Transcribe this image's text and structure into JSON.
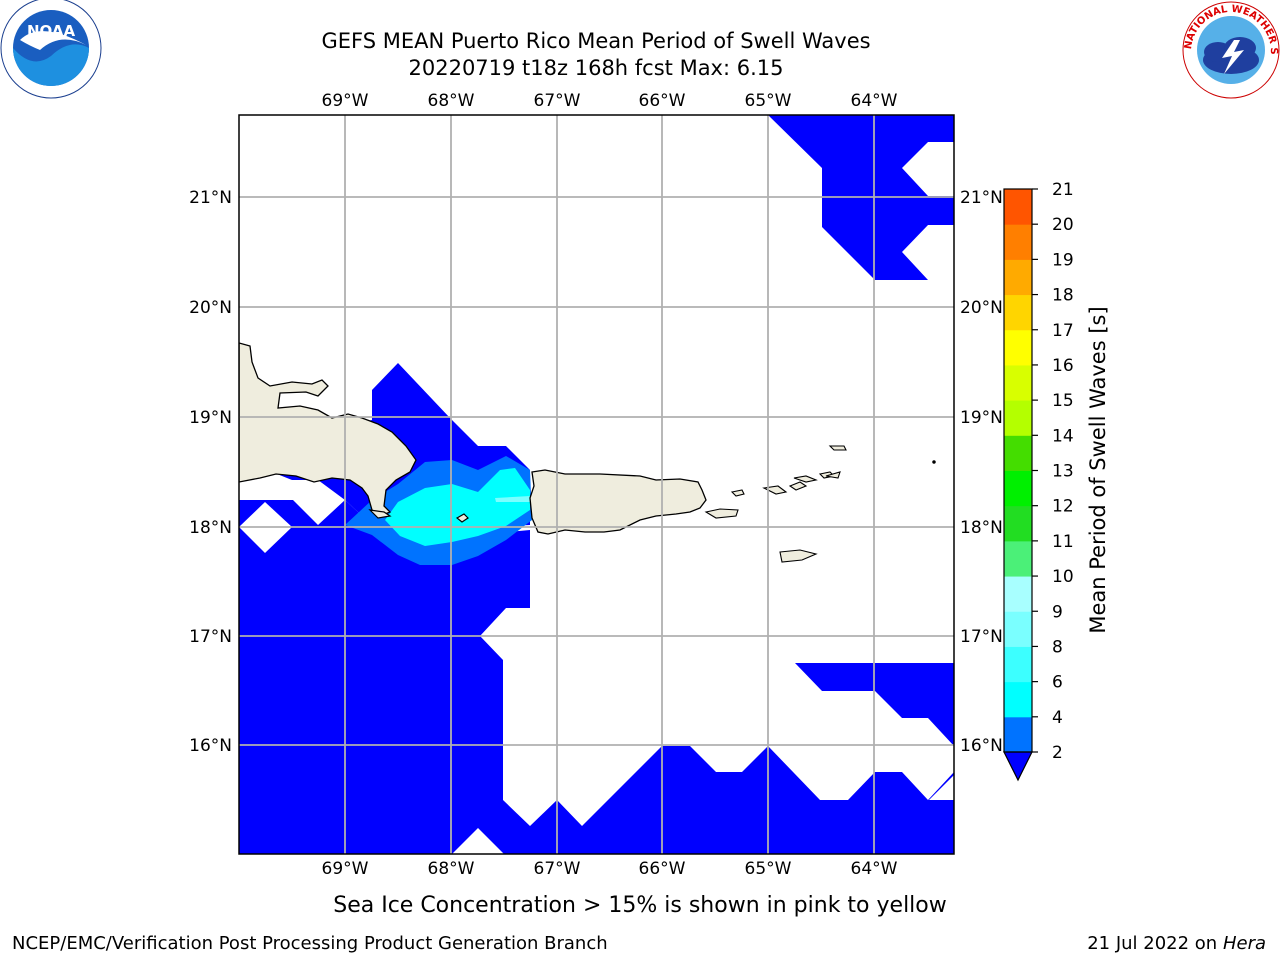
{
  "title_line1": "GEFS MEAN Puerto Rico Mean Period of Swell Waves",
  "title_line2": "20220719 t18z 168h fcst   Max: 6.15",
  "lon_labels": [
    "69°W",
    "68°W",
    "67°W",
    "66°W",
    "65°W",
    "64°W"
  ],
  "lat_labels": [
    "21°N",
    "20°N",
    "19°N",
    "18°N",
    "17°N",
    "16°N"
  ],
  "colorbar": {
    "label": "Mean Period of Swell Waves [s]",
    "ticks": [
      "2",
      "4",
      "6",
      "8",
      "9",
      "10",
      "11",
      "12",
      "13",
      "14",
      "15",
      "16",
      "17",
      "18",
      "19",
      "20",
      "21"
    ],
    "colors": [
      "#0073ff",
      "#00ffff",
      "#3cffff",
      "#7affff",
      "#a8ffff",
      "#4bf078",
      "#22dd22",
      "#00f000",
      "#44dd00",
      "#b4ff00",
      "#d8ff00",
      "#ffff00",
      "#ffd500",
      "#ffaa00",
      "#ff7f00",
      "#ff5500",
      "#ff2400",
      "#ff0000"
    ],
    "under_color": "#0000ff"
  },
  "caption": "Sea Ice Concentration > 15% is shown in pink to yellow",
  "footer_left": "NCEP/EMC/Verification Post Processing Product Generation Branch",
  "footer_right_date": "21 Jul 2022 on ",
  "footer_right_machine": "Hera",
  "logos": {
    "left": "NOAA",
    "right_text": "NATIONAL WEATHER SERVICE"
  },
  "colors": {
    "land": "#efedde",
    "swell_low": "#0000ff",
    "swell_mid": "#0073ff",
    "swell_cyan": "#00ffff",
    "grid": "#b0b0b0"
  }
}
